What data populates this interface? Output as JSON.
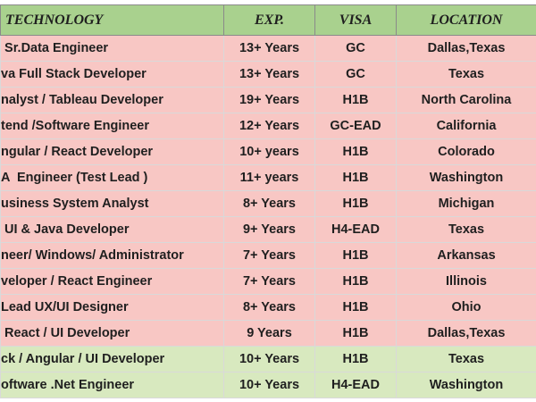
{
  "table": {
    "header": [
      "TECHNOLOGY",
      "EXP.",
      "VISA",
      "LOCATION"
    ],
    "rows": [
      [
        " Sr.Data Engineer",
        "13+ Years",
        "GC",
        "Dallas,Texas"
      ],
      [
        "va Full Stack Developer",
        "13+ Years",
        "GC",
        "Texas"
      ],
      [
        "nalyst / Tableau Developer",
        "19+ Years",
        "H1B",
        "North Carolina"
      ],
      [
        "tend /Software Engineer",
        "12+ Years",
        "GC-EAD",
        "California"
      ],
      [
        "ngular / React Developer",
        "10+ years",
        "H1B",
        "Colorado"
      ],
      [
        "A  Engineer (Test Lead )",
        "11+ years",
        "H1B",
        "Washington"
      ],
      [
        "usiness System Analyst",
        "8+ Years",
        "H1B",
        "Michigan"
      ],
      [
        " UI & Java Developer",
        "9+ Years",
        "H4-EAD",
        "Texas"
      ],
      [
        "neer/ Windows/ Administrator",
        "7+ Years",
        "H1B",
        "Arkansas"
      ],
      [
        "veloper / React Engineer",
        "7+ Years",
        "H1B",
        "Illinois"
      ],
      [
        "Lead UX/UI Designer",
        "8+ Years",
        "H1B",
        "Ohio"
      ],
      [
        " React / UI Developer",
        "9 Years",
        "H1B",
        "Dallas,Texas"
      ],
      [
        "ck / Angular / UI Developer",
        "10+ Years",
        "H1B",
        "Texas"
      ],
      [
        "oftware .Net Engineer",
        "10+ Years",
        "H4-EAD",
        "Washington"
      ]
    ]
  }
}
